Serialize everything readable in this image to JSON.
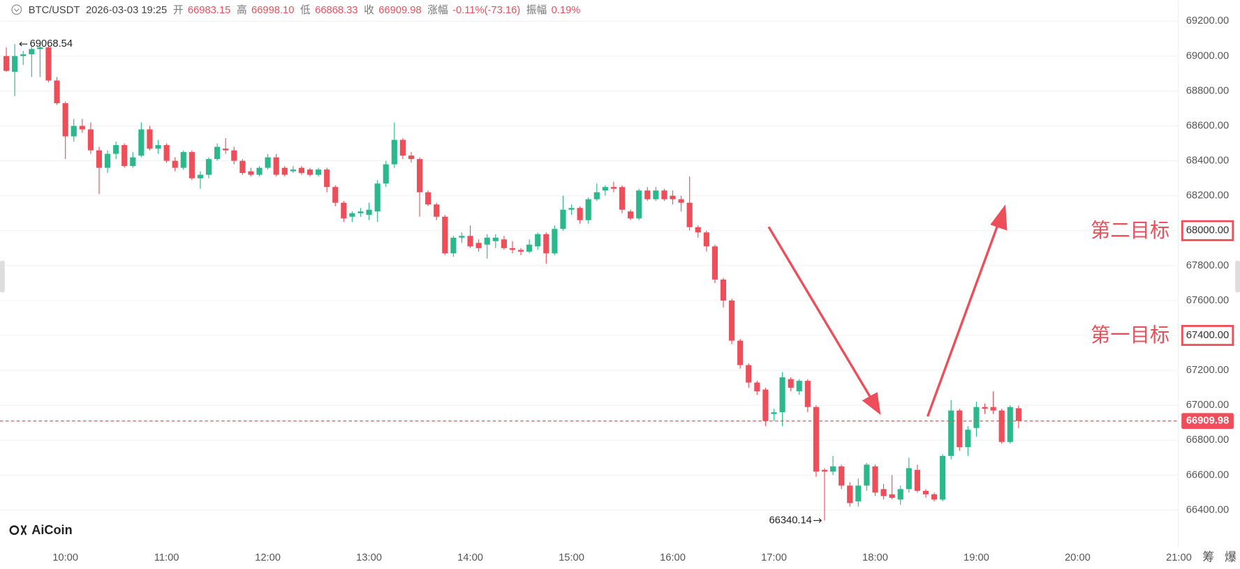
{
  "header": {
    "symbol": "BTC/USDT",
    "time": "2026-03-03 19:25",
    "items": [
      {
        "label": "开",
        "value": "66983.15"
      },
      {
        "label": "高",
        "value": "66998.10"
      },
      {
        "label": "低",
        "value": "66868.33"
      },
      {
        "label": "收",
        "value": "66909.98"
      },
      {
        "label": "涨幅",
        "value": "-0.11%(-73.16)"
      },
      {
        "label": "振幅",
        "value": "0.19%"
      }
    ]
  },
  "watermark": "AiCoin",
  "toolbar": [
    "筹",
    "爆"
  ],
  "chart_data": {
    "type": "candlestick",
    "categories": [
      null,
      null,
      null,
      null,
      null,
      null,
      null,
      "10:00",
      null,
      null,
      null,
      null,
      null,
      null,
      null,
      null,
      null,
      null,
      null,
      "11:00",
      null,
      null,
      null,
      null,
      null,
      null,
      null,
      null,
      null,
      null,
      null,
      "12:00",
      null,
      null,
      null,
      null,
      null,
      null,
      null,
      null,
      null,
      null,
      null,
      "13:00",
      null,
      null,
      null,
      null,
      null,
      null,
      null,
      null,
      null,
      null,
      null,
      "14:00",
      null,
      null,
      null,
      null,
      null,
      null,
      null,
      null,
      null,
      null,
      null,
      "15:00",
      null,
      null,
      null,
      null,
      null,
      null,
      null,
      null,
      null,
      null,
      null,
      "16:00",
      null,
      null,
      null,
      null,
      null,
      null,
      null,
      null,
      null,
      null,
      null,
      "17:00",
      null,
      null,
      null,
      null,
      null,
      null,
      null,
      null,
      null,
      null,
      null,
      "18:00",
      null,
      null,
      null,
      null,
      null,
      null,
      null,
      null,
      null,
      null,
      null,
      "19:00",
      null,
      null,
      null,
      null,
      null,
      null,
      null,
      null,
      null,
      null,
      null,
      "20:00",
      null,
      null,
      null,
      null,
      null,
      null,
      null,
      null,
      null,
      null,
      null,
      "21:00"
    ],
    "open": [
      69000,
      68910,
      69000,
      69010,
      69040,
      69050,
      68860,
      68730,
      68540,
      68600,
      68580,
      68460,
      68360,
      68440,
      68490,
      68370,
      68430,
      68580,
      68470,
      68490,
      68400,
      68360,
      68450,
      68300,
      68320,
      68410,
      68470,
      68460,
      68400,
      68340,
      68320,
      68360,
      68420,
      68360,
      68340,
      68360,
      68350,
      68320,
      68350,
      68250,
      68160,
      68080,
      68100,
      68090,
      68110,
      68270,
      68380,
      68520,
      68430,
      68410,
      68220,
      68150,
      68080,
      67870,
      67960,
      67970,
      67930,
      67920,
      67940,
      67950,
      67900,
      67890,
      67880,
      67910,
      67980,
      67870,
      68010,
      68120,
      68130,
      68060,
      68180,
      68230,
      68250,
      68250,
      68110,
      68070,
      68230,
      68180,
      68230,
      68200,
      68180,
      68160,
      68020,
      67990,
      67910,
      67720,
      67600,
      67370,
      67230,
      67130,
      67090,
      66950,
      66960,
      67150,
      67080,
      67140,
      66990,
      66630,
      66620,
      66650,
      66540,
      66450,
      66540,
      66650,
      66520,
      66490,
      66460,
      66520,
      66630,
      66510,
      66490,
      66460,
      66710,
      66970,
      66760,
      66870,
      66990,
      66990,
      66970,
      66790,
      66983.15,
      null,
      null,
      null,
      null,
      null,
      null,
      null,
      null,
      null,
      null,
      null,
      null,
      null,
      null,
      null,
      null,
      null,
      null,
      null
    ],
    "high": [
      69050,
      69068.54,
      69030,
      69060,
      69068,
      69060,
      68880,
      68740,
      68640,
      68640,
      68620,
      68480,
      68460,
      68510,
      68500,
      68450,
      68620,
      68600,
      68520,
      68500,
      68420,
      68460,
      68460,
      68340,
      68420,
      68500,
      68530,
      68480,
      68410,
      68360,
      68370,
      68440,
      68440,
      68370,
      68370,
      68370,
      68360,
      68360,
      68360,
      68260,
      68170,
      68110,
      68130,
      68160,
      68290,
      68400,
      68620,
      68530,
      68450,
      68420,
      68230,
      68160,
      68090,
      67970,
      67990,
      68030,
      67950,
      67980,
      67980,
      67970,
      67940,
      67900,
      67950,
      67990,
      67990,
      68030,
      68200,
      68150,
      68140,
      68190,
      68270,
      68260,
      68280,
      68260,
      68120,
      68240,
      68250,
      68250,
      68240,
      68230,
      68200,
      68310,
      68030,
      68000,
      67920,
      67730,
      67610,
      67380,
      67240,
      67140,
      67100,
      66980,
      67190,
      67160,
      67150,
      67150,
      67000,
      66640,
      66710,
      66660,
      66560,
      66580,
      66670,
      66660,
      66550,
      66600,
      66540,
      66700,
      66660,
      66520,
      66500,
      66720,
      67030,
      66980,
      66880,
      67020,
      67010,
      67080,
      66980,
      67000,
      66998.1,
      null,
      null,
      null,
      null,
      null,
      null,
      null,
      null,
      null,
      null,
      null,
      null,
      null,
      null,
      null,
      null,
      null,
      null,
      null
    ],
    "low": [
      68910,
      68770,
      68950,
      68880,
      68880,
      68850,
      68720,
      68410,
      68510,
      68560,
      68440,
      68210,
      68330,
      68410,
      68360,
      68360,
      68420,
      68460,
      68440,
      68390,
      68340,
      68350,
      68290,
      68240,
      68300,
      68400,
      68440,
      68380,
      68320,
      68310,
      68310,
      68350,
      68310,
      68310,
      68330,
      68320,
      68310,
      68310,
      68220,
      68140,
      68050,
      68050,
      68080,
      68060,
      68050,
      68250,
      68360,
      68410,
      68390,
      68080,
      68140,
      68060,
      67860,
      67850,
      67930,
      67900,
      67880,
      67840,
      67900,
      67890,
      67870,
      67860,
      67870,
      67890,
      67810,
      67860,
      68000,
      68090,
      68040,
      68040,
      68170,
      68200,
      68220,
      68100,
      68060,
      68060,
      68170,
      68170,
      68170,
      68150,
      68110,
      68000,
      67960,
      67880,
      67700,
      67560,
      67350,
      67210,
      67100,
      67060,
      66880,
      66910,
      66880,
      67080,
      67060,
      66960,
      66590,
      66340.14,
      66600,
      66520,
      66420,
      66420,
      66510,
      66480,
      66460,
      66460,
      66430,
      66500,
      66500,
      66470,
      66450,
      66450,
      66690,
      66740,
      66710,
      66820,
      66950,
      66950,
      66780,
      66780,
      66868.33,
      null,
      null,
      null,
      null,
      null,
      null,
      null,
      null,
      null,
      null,
      null,
      null,
      null,
      null,
      null,
      null,
      null,
      null,
      null
    ],
    "close": [
      68915,
      69000,
      69010,
      69040,
      69050,
      68860,
      68730,
      68540,
      68600,
      68580,
      68460,
      68360,
      68440,
      68490,
      68370,
      68420,
      68580,
      68470,
      68490,
      68400,
      68360,
      68450,
      68300,
      68320,
      68410,
      68480,
      68460,
      68400,
      68330,
      68320,
      68360,
      68420,
      68320,
      68320,
      68350,
      68330,
      68320,
      68350,
      68250,
      68160,
      68070,
      68100,
      68110,
      68120,
      68270,
      68380,
      68520,
      68430,
      68410,
      68220,
      68150,
      68080,
      67870,
      67960,
      67970,
      67910,
      67900,
      67960,
      67960,
      67900,
      67890,
      67880,
      67920,
      67980,
      67870,
      68010,
      68120,
      68130,
      68060,
      68180,
      68220,
      68250,
      68240,
      68120,
      68070,
      68230,
      68180,
      68230,
      68180,
      68180,
      68160,
      68020,
      67990,
      67910,
      67720,
      67600,
      67370,
      67230,
      67130,
      67080,
      66910,
      66960,
      67160,
      67100,
      67140,
      66990,
      66620,
      66620,
      66650,
      66540,
      66440,
      66540,
      66660,
      66500,
      66480,
      66470,
      66520,
      66640,
      66510,
      66490,
      66460,
      66710,
      66970,
      66760,
      66860,
      66990,
      66980,
      66970,
      66790,
      66990,
      66909.98,
      null,
      null,
      null,
      null,
      null,
      null,
      null,
      null,
      null,
      null,
      null,
      null,
      null,
      null,
      null,
      null,
      null,
      null,
      null
    ],
    "up_color": "#2bb88c",
    "down_color": "#ee4d5a",
    "ylim": [
      66190,
      69320
    ],
    "yticks": [
      {
        "value": 66400,
        "label": "66400.00"
      },
      {
        "value": 66600,
        "label": "66600.00"
      },
      {
        "value": 66800,
        "label": "66800.00"
      },
      {
        "value": 67000,
        "label": "67000.00"
      },
      {
        "value": 67200,
        "label": "67200.00"
      },
      {
        "value": 67400,
        "label": "67400.00"
      },
      {
        "value": 67600,
        "label": "67600.00"
      },
      {
        "value": 67800,
        "label": "67800.00"
      },
      {
        "value": 68000,
        "label": "68000.00"
      },
      {
        "value": 68200,
        "label": "68200.00"
      },
      {
        "value": 68400,
        "label": "68400.00"
      },
      {
        "value": 68600,
        "label": "68600.00"
      },
      {
        "value": 68800,
        "label": "68800.00"
      },
      {
        "value": 69000,
        "label": "69000.00"
      },
      {
        "value": 69200,
        "label": "69200.00"
      }
    ],
    "grid": true,
    "targets": [
      {
        "name": "第二目标",
        "value": 68000,
        "label": "68000.00"
      },
      {
        "name": "第一目标",
        "value": 67400,
        "label": "67400.00"
      }
    ]
  }
}
